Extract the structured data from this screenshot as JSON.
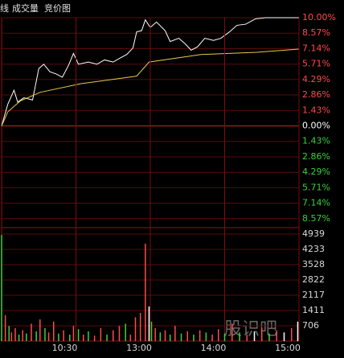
{
  "header_tabs": [
    "线",
    "成交量",
    "竞价图"
  ],
  "watermark": "股识吧",
  "chart_data": [
    {
      "type": "line",
      "ylim": [
        -10,
        10
      ],
      "xlim": [
        0,
        240
      ],
      "up_color": "#ff4a4a",
      "down_color": "#3ad13a",
      "flat_color": "#ffffff",
      "yticks": [
        {
          "value": 10,
          "label": "10.00%"
        },
        {
          "value": 8.57,
          "label": "8.57%"
        },
        {
          "value": 7.14,
          "label": "7.14%"
        },
        {
          "value": 5.71,
          "label": "5.71%"
        },
        {
          "value": 4.29,
          "label": "4.29%"
        },
        {
          "value": 2.86,
          "label": "2.86%"
        },
        {
          "value": 1.43,
          "label": "1.43%"
        },
        {
          "value": 0,
          "label": "0.00%"
        },
        {
          "value": -1.43,
          "label": "1.43%"
        },
        {
          "value": -2.86,
          "label": "2.86%"
        },
        {
          "value": -4.29,
          "label": "4.29%"
        },
        {
          "value": -5.71,
          "label": "5.71%"
        },
        {
          "value": -7.14,
          "label": "7.14%"
        },
        {
          "value": -8.57,
          "label": "8.57%"
        }
      ],
      "series": [
        {
          "color": "#ffffff",
          "x": [
            0,
            5,
            10,
            13,
            18,
            25,
            30,
            34,
            39,
            44,
            49,
            54,
            58,
            62,
            70,
            77,
            83,
            90,
            96,
            101,
            106,
            109,
            113,
            116,
            120,
            125,
            132,
            136,
            143,
            148,
            153,
            158,
            164,
            171,
            177,
            184,
            190,
            197,
            205,
            213,
            240
          ],
          "values": [
            0,
            2.0,
            3.3,
            2.2,
            2.6,
            2.4,
            5.3,
            5.7,
            5.0,
            4.8,
            4.5,
            5.6,
            6.7,
            5.7,
            5.9,
            5.7,
            6.1,
            5.9,
            6.3,
            6.6,
            7.2,
            8.7,
            8.8,
            9.8,
            9.1,
            9.6,
            8.8,
            7.8,
            8.1,
            7.6,
            7.0,
            7.3,
            8.1,
            7.9,
            8.1,
            8.7,
            9.3,
            9.4,
            9.9,
            10.0,
            10.0
          ]
        },
        {
          "color": "#e8c84a",
          "x": [
            0,
            5,
            15,
            31,
            64,
            109,
            119,
            161,
            206,
            240
          ],
          "values": [
            0,
            1.3,
            2.3,
            3.1,
            3.9,
            4.6,
            5.9,
            6.6,
            6.8,
            7.1
          ]
        }
      ]
    },
    {
      "type": "bar",
      "ylim": [
        0,
        4939
      ],
      "xlim": [
        0,
        240
      ],
      "yticks": [
        4939,
        4233,
        3528,
        2822,
        2117,
        1411,
        706
      ],
      "xticks": [
        {
          "value": 60,
          "label": "10:30"
        },
        {
          "value": 120,
          "label": "13:00"
        },
        {
          "value": 180,
          "label": "14:00"
        },
        {
          "value": 240,
          "label": "15:00"
        }
      ],
      "x": [
        0,
        3,
        6,
        8,
        11,
        14,
        17,
        20,
        24,
        28,
        31,
        35,
        38,
        42,
        46,
        50,
        55,
        58,
        62,
        66,
        70,
        75,
        80,
        85,
        90,
        95,
        100,
        104,
        108,
        112,
        116,
        119,
        121,
        124,
        128,
        132,
        136,
        140,
        145,
        150,
        155,
        160,
        165,
        170,
        175,
        180,
        186,
        192,
        198,
        204,
        210,
        216,
        222,
        228,
        234,
        239
      ],
      "values": [
        4900,
        1200,
        700,
        400,
        600,
        300,
        500,
        350,
        800,
        450,
        1000,
        600,
        400,
        900,
        350,
        500,
        300,
        700,
        550,
        300,
        450,
        250,
        600,
        300,
        500,
        700,
        800,
        300,
        1100,
        1300,
        4500,
        1600,
        900,
        600,
        400,
        500,
        300,
        700,
        350,
        450,
        300,
        500,
        400,
        300,
        550,
        350,
        800,
        400,
        300,
        450,
        600,
        350,
        500,
        400,
        600,
        900
      ],
      "colors": [
        "#3ad13a",
        "#ff4a4a",
        "#3ad13a",
        "#ff4a4a",
        "#ff4a4a",
        "#3ad13a",
        "#ff4a4a",
        "#3ad13a",
        "#ff4a4a",
        "#3ad13a",
        "#ff4a4a",
        "#3ad13a",
        "#ff4a4a",
        "#ff4a4a",
        "#3ad13a",
        "#ff4a4a",
        "#3ad13a",
        "#ff4a4a",
        "#3ad13a",
        "#ff4a4a",
        "#3ad13a",
        "#ff4a4a",
        "#ff4a4a",
        "#3ad13a",
        "#ff4a4a",
        "#ff4a4a",
        "#3ad13a",
        "#ff4a4a",
        "#ff4a4a",
        "#ff4a4a",
        "#ff4a4a",
        "#ffffff",
        "#3ad13a",
        "#ff4a4a",
        "#3ad13a",
        "#ff4a4a",
        "#3ad13a",
        "#ff4a4a",
        "#3ad13a",
        "#ff4a4a",
        "#3ad13a",
        "#ff4a4a",
        "#3ad13a",
        "#ff4a4a",
        "#ff4a4a",
        "#3ad13a",
        "#ff4a4a",
        "#3ad13a",
        "#ff4a4a",
        "#ffffff",
        "#ff4a4a",
        "#3ad13a",
        "#ff4a4a",
        "#ffffff",
        "#ff4a4a",
        "#ffffff"
      ]
    }
  ]
}
